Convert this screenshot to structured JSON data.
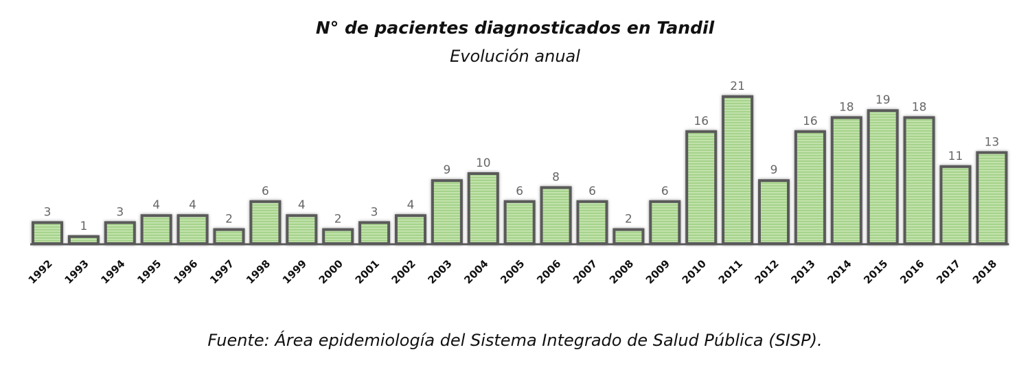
{
  "chart_data": {
    "type": "bar",
    "title": "N° de pacientes diagnosticados en Tandil",
    "subtitle": "Evolución anual",
    "source": "Fuente: Área epidemiología del Sistema Integrado de Salud Pública (SISP).",
    "categories": [
      "1992",
      "1993",
      "1994",
      "1995",
      "1996",
      "1997",
      "1998",
      "1999",
      "2000",
      "2001",
      "2002",
      "2003",
      "2004",
      "2005",
      "2006",
      "2007",
      "2008",
      "2009",
      "2010",
      "2011",
      "2012",
      "2013",
      "2014",
      "2015",
      "2016",
      "2017",
      "2018"
    ],
    "values": [
      3,
      1,
      3,
      4,
      4,
      2,
      6,
      4,
      2,
      3,
      4,
      9,
      10,
      6,
      8,
      6,
      2,
      6,
      16,
      21,
      9,
      16,
      18,
      19,
      18,
      11,
      13
    ],
    "ylim": [
      0,
      21
    ],
    "grid": false,
    "legend": "none",
    "colors": {
      "bar_fill": "#a6d38b",
      "bar_stripe": "#c9e6b5",
      "bar_outline": "#5a5a5a",
      "value_label": "#666666",
      "tick_label": "#111111"
    }
  }
}
